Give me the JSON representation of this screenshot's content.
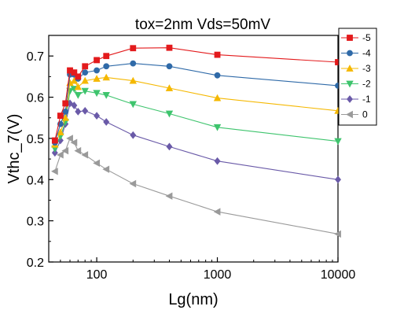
{
  "chart_data": {
    "type": "line",
    "title": "tox=2nm  Vds=50mV",
    "xlabel": "Lg(nm)",
    "ylabel": "Vthc_7(V)",
    "xscale": "log",
    "xlim": [
      40,
      10000
    ],
    "ylim": [
      0.2,
      0.75
    ],
    "x_ticks": [
      100,
      1000,
      10000
    ],
    "x_tick_labels": [
      "100",
      "1000",
      "10000"
    ],
    "y_ticks": [
      0.2,
      0.3,
      0.4,
      0.5,
      0.6,
      0.7
    ],
    "y_tick_labels": [
      "0.2",
      "0.3",
      "0.4",
      "0.5",
      "0.6",
      "0.7"
    ],
    "grid": false,
    "legend_position": "top-right",
    "x": [
      45,
      50,
      55,
      60,
      65,
      70,
      80,
      100,
      120,
      200,
      400,
      1000,
      10000
    ],
    "series": [
      {
        "name": "-5",
        "color": "#e31a1c",
        "marker": "square",
        "values": [
          0.495,
          0.555,
          0.585,
          0.665,
          0.66,
          0.65,
          0.675,
          0.69,
          0.7,
          0.719,
          0.72,
          0.703,
          0.685
        ]
      },
      {
        "name": "-4",
        "color": "#2f6aa8",
        "marker": "circle",
        "values": [
          0.49,
          0.535,
          0.565,
          0.655,
          0.655,
          0.645,
          0.66,
          0.665,
          0.675,
          0.682,
          0.675,
          0.653,
          0.628
        ]
      },
      {
        "name": "-3",
        "color": "#f5b800",
        "marker": "triangle-up",
        "values": [
          0.485,
          0.515,
          0.55,
          0.635,
          0.64,
          0.625,
          0.64,
          0.645,
          0.648,
          0.64,
          0.622,
          0.598,
          0.567
        ]
      },
      {
        "name": "-2",
        "color": "#3ec46d",
        "marker": "triangle-down",
        "values": [
          0.475,
          0.505,
          0.54,
          0.615,
          0.62,
          0.605,
          0.615,
          0.61,
          0.605,
          0.583,
          0.56,
          0.527,
          0.493
        ]
      },
      {
        "name": "-1",
        "color": "#6a5aa8",
        "marker": "diamond",
        "values": [
          0.465,
          0.495,
          0.535,
          0.585,
          0.58,
          0.565,
          0.567,
          0.555,
          0.54,
          0.508,
          0.48,
          0.445,
          0.4
        ]
      },
      {
        "name": "0",
        "color": "#9a9a9a",
        "marker": "triangle-left",
        "values": [
          0.42,
          0.46,
          0.47,
          0.5,
          0.49,
          0.47,
          0.46,
          0.44,
          0.425,
          0.39,
          0.36,
          0.322,
          0.268
        ]
      }
    ]
  }
}
